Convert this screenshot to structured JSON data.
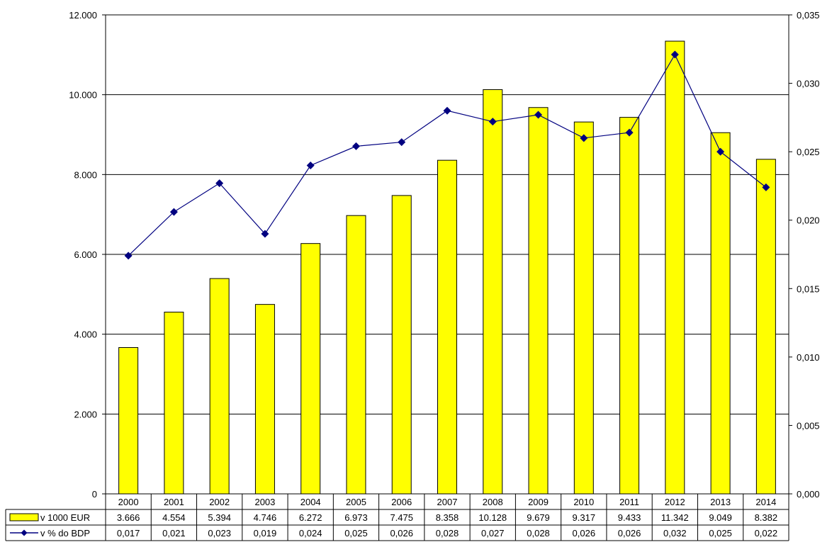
{
  "chart_data": {
    "type": "bar",
    "categories": [
      "2000",
      "2001",
      "2002",
      "2003",
      "2004",
      "2005",
      "2006",
      "2007",
      "2008",
      "2009",
      "2010",
      "2011",
      "2012",
      "2013",
      "2014"
    ],
    "series": [
      {
        "name": "v 1000 EUR",
        "chart_type": "bar",
        "axis": "left",
        "color": "#ffff00",
        "values": [
          3666,
          4554,
          5394,
          4746,
          6272,
          6973,
          7475,
          8358,
          10128,
          9679,
          9317,
          9433,
          11342,
          9049,
          8382
        ],
        "labels": [
          "3.666",
          "4.554",
          "5.394",
          "4.746",
          "6.272",
          "6.973",
          "7.475",
          "8.358",
          "10.128",
          "9.679",
          "9.317",
          "9.433",
          "11.342",
          "9.049",
          "8.382"
        ]
      },
      {
        "name": "v % do BDP",
        "chart_type": "line",
        "axis": "right",
        "color": "#000080",
        "values": [
          0.0174,
          0.0206,
          0.0227,
          0.019,
          0.024,
          0.0254,
          0.0257,
          0.028,
          0.0272,
          0.0277,
          0.026,
          0.0264,
          0.0321,
          0.025,
          0.0224
        ],
        "labels": [
          "0,017",
          "0,021",
          "0,023",
          "0,019",
          "0,024",
          "0,025",
          "0,026",
          "0,028",
          "0,027",
          "0,028",
          "0,026",
          "0,026",
          "0,032",
          "0,025",
          "0,022"
        ]
      }
    ],
    "y_left": {
      "ylim": [
        0,
        12000
      ],
      "ticks": [
        0,
        2000,
        4000,
        6000,
        8000,
        10000,
        12000
      ],
      "tick_labels": [
        "0",
        "2.000",
        "4.000",
        "6.000",
        "8.000",
        "10.000",
        "12.000"
      ]
    },
    "y_right": {
      "ylim": [
        0,
        0.035
      ],
      "ticks": [
        0,
        0.005,
        0.01,
        0.015,
        0.02,
        0.025,
        0.03,
        0.035
      ],
      "tick_labels": [
        "0,000",
        "0,005",
        "0,010",
        "0,015",
        "0,020",
        "0,025",
        "0,030",
        "0,035"
      ]
    },
    "grid": true,
    "legend": "data-table-below"
  }
}
